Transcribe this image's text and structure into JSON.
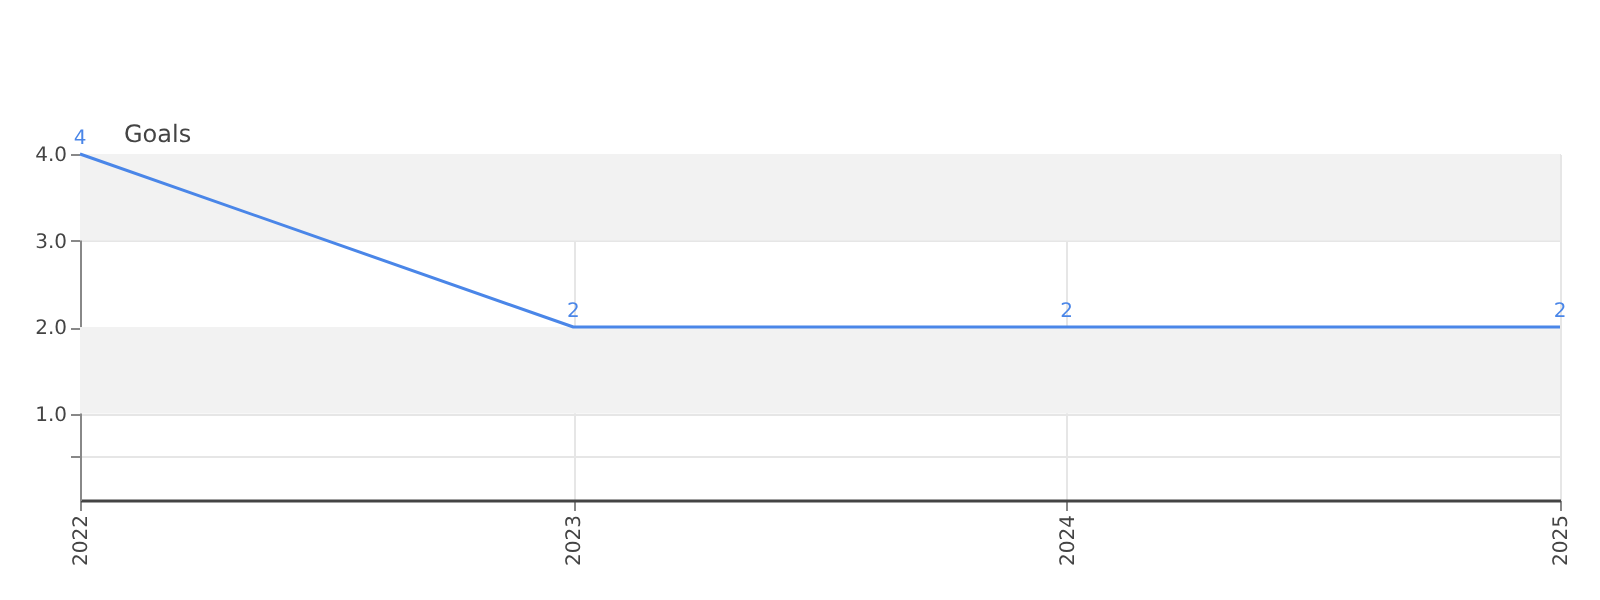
{
  "chart_data": {
    "type": "line",
    "ylabel": "Goals",
    "x": [
      2022,
      2023,
      2024,
      2025
    ],
    "series": [
      {
        "color": "#4a86e8",
        "values": [
          4,
          2,
          2,
          2
        ]
      }
    ],
    "xlim": [
      2022,
      2025
    ],
    "xticks": [
      2022,
      2023,
      2024,
      2025
    ],
    "ylim": [
      0,
      4
    ],
    "yticks": [
      {
        "value": 0.5,
        "label": null
      },
      {
        "value": 1,
        "label": "1.0"
      },
      {
        "value": 2,
        "label": "2.0"
      },
      {
        "value": 3,
        "label": "3.0"
      },
      {
        "value": 4,
        "label": "4.0"
      }
    ],
    "bands": [
      {
        "axis": "y",
        "from": 3,
        "to": 4,
        "color": "#f2f2f2"
      },
      {
        "axis": "y",
        "from": 1,
        "to": 2,
        "color": "#f2f2f2"
      }
    ],
    "grid": true,
    "marker": "none",
    "line_style": "solid",
    "data_labels": true
  }
}
